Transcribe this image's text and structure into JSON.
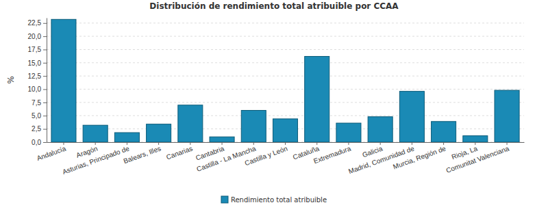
{
  "chart_data": {
    "type": "bar",
    "title": "Distribución de rendimiento total atribuible por CCAA",
    "y_label": "%",
    "categories": [
      "Andalucía",
      "Aragón",
      "Asturias, Principado de",
      "Balears, Illes",
      "Canarias",
      "Cantabria",
      "Castilla - La Mancha",
      "Castilla y León",
      "Cataluña",
      "Extremadura",
      "Galicia",
      "Madrid, Comunidad de",
      "Murcia, Región de",
      "Rioja, La",
      "Comunitat Valenciana"
    ],
    "series": [
      {
        "name": "Rendimiento total atribuible",
        "color": "#1a8ab5",
        "values": [
          23.2,
          3.2,
          1.8,
          3.4,
          7.0,
          1.0,
          6.0,
          4.4,
          16.2,
          3.6,
          4.8,
          9.6,
          3.9,
          1.2,
          9.8
        ]
      }
    ],
    "ylim": [
      0,
      23.5
    ],
    "yticks": [
      {
        "value": 0,
        "label": "0,0"
      },
      {
        "value": 2.5,
        "label": "2,5"
      },
      {
        "value": 5,
        "label": "5,0"
      },
      {
        "value": 7.5,
        "label": "7,5"
      },
      {
        "value": 10,
        "label": "10,0"
      },
      {
        "value": 12.5,
        "label": "12,5"
      },
      {
        "value": 15,
        "label": "15,0"
      },
      {
        "value": 17.5,
        "label": "17,5"
      },
      {
        "value": 20,
        "label": "20,0"
      },
      {
        "value": 22.5,
        "label": "22,5"
      }
    ],
    "grid": true,
    "legend": "bottom"
  }
}
